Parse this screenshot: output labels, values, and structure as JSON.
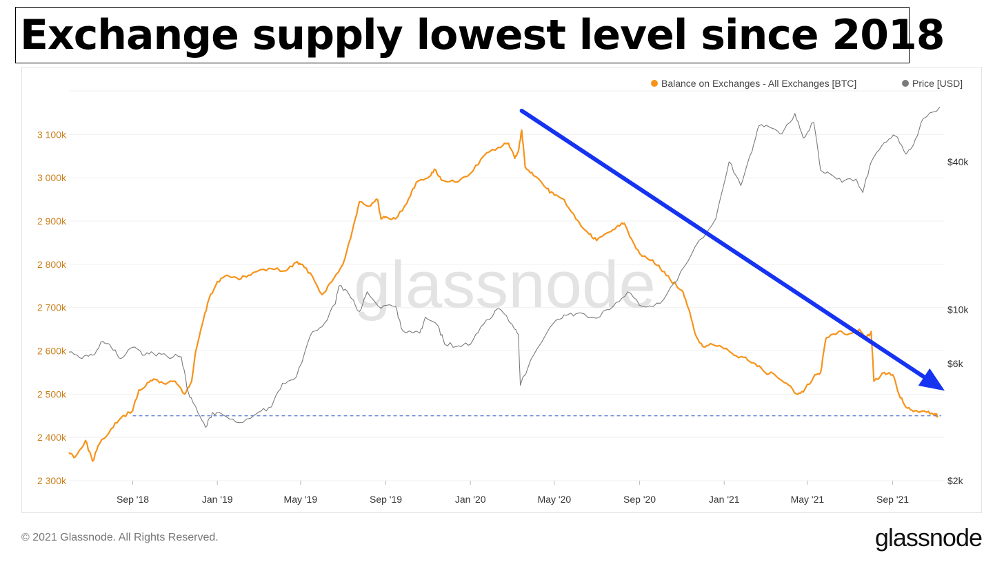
{
  "header": {
    "title": "Exchange supply lowest level since 2018"
  },
  "watermark": "glassnode",
  "footer": {
    "copyright": "© 2021 Glassnode. All Rights Reserved.",
    "logo_text": "glassnode"
  },
  "colors": {
    "balance": "#f7931a",
    "price": "#7a7a7a",
    "arrow": "#1533f0",
    "dashed": "#5b7bd5",
    "left_ticks": "#c97f1c",
    "grid": "#efefef"
  },
  "chart_data": {
    "type": "line",
    "title": "",
    "x_tick_labels": [
      "Sep '18",
      "Jan '19",
      "May '19",
      "Sep '19",
      "Jan '20",
      "May '20",
      "Sep '20",
      "Jan '21",
      "May '21",
      "Sep '21"
    ],
    "x_ticks": [
      "2018-09-01",
      "2019-01-01",
      "2019-05-01",
      "2019-09-01",
      "2020-01-01",
      "2020-05-01",
      "2020-09-01",
      "2021-01-01",
      "2021-05-01",
      "2021-09-01"
    ],
    "xlim": [
      "2018-06-01",
      "2021-11-15"
    ],
    "legend": {
      "position": "top-right",
      "items": [
        "Balance on Exchanges - All Exchanges [BTC]",
        "Price [USD]"
      ]
    },
    "left_axis": {
      "ticks": [
        2300000,
        2400000,
        2500000,
        2600000,
        2700000,
        2800000,
        2900000,
        3000000,
        3100000
      ],
      "labels": [
        "2 300k",
        "2 400k",
        "2 500k",
        "2 600k",
        "2 700k",
        "2 800k",
        "2 900k",
        "3 000k",
        "3 100k"
      ],
      "ylim": [
        2300000,
        3220000
      ]
    },
    "right_axis": {
      "scale": "log",
      "ticks": [
        2000,
        6000,
        10000,
        40000
      ],
      "labels": [
        "$2k",
        "$6k",
        "$10k",
        "$40k"
      ]
    },
    "series": [
      {
        "name": "Balance on Exchanges - All Exchanges [BTC]",
        "axis": "left",
        "points": [
          [
            "2018-06-01",
            2365000
          ],
          [
            "2018-06-10",
            2355000
          ],
          [
            "2018-06-25",
            2393000
          ],
          [
            "2018-07-05",
            2345000
          ],
          [
            "2018-07-15",
            2385000
          ],
          [
            "2018-08-01",
            2420000
          ],
          [
            "2018-08-15",
            2445000
          ],
          [
            "2018-09-01",
            2462000
          ],
          [
            "2018-09-10",
            2510000
          ],
          [
            "2018-09-20",
            2520000
          ],
          [
            "2018-10-01",
            2535000
          ],
          [
            "2018-10-15",
            2525000
          ],
          [
            "2018-11-01",
            2530000
          ],
          [
            "2018-11-15",
            2500000
          ],
          [
            "2018-11-25",
            2530000
          ],
          [
            "2018-12-01",
            2600000
          ],
          [
            "2018-12-10",
            2660000
          ],
          [
            "2018-12-20",
            2720000
          ],
          [
            "2019-01-01",
            2760000
          ],
          [
            "2019-01-15",
            2775000
          ],
          [
            "2019-02-01",
            2765000
          ],
          [
            "2019-02-15",
            2775000
          ],
          [
            "2019-03-01",
            2785000
          ],
          [
            "2019-03-20",
            2790000
          ],
          [
            "2019-04-10",
            2785000
          ],
          [
            "2019-04-25",
            2805000
          ],
          [
            "2019-05-01",
            2800000
          ],
          [
            "2019-05-15",
            2780000
          ],
          [
            "2019-06-01",
            2730000
          ],
          [
            "2019-06-15",
            2760000
          ],
          [
            "2019-07-01",
            2800000
          ],
          [
            "2019-07-15",
            2880000
          ],
          [
            "2019-07-25",
            2945000
          ],
          [
            "2019-08-10",
            2935000
          ],
          [
            "2019-08-20",
            2950000
          ],
          [
            "2019-08-25",
            2905000
          ],
          [
            "2019-09-01",
            2910000
          ],
          [
            "2019-09-15",
            2905000
          ],
          [
            "2019-10-01",
            2940000
          ],
          [
            "2019-10-15",
            2990000
          ],
          [
            "2019-11-01",
            3000000
          ],
          [
            "2019-11-10",
            3020000
          ],
          [
            "2019-11-20",
            2995000
          ],
          [
            "2019-12-10",
            2990000
          ],
          [
            "2020-01-01",
            3010000
          ],
          [
            "2020-01-20",
            3050000
          ],
          [
            "2020-02-10",
            3070000
          ],
          [
            "2020-02-25",
            3080000
          ],
          [
            "2020-03-05",
            3045000
          ],
          [
            "2020-03-10",
            3060000
          ],
          [
            "2020-03-15",
            3110000
          ],
          [
            "2020-03-20",
            3025000
          ],
          [
            "2020-04-01",
            3005000
          ],
          [
            "2020-04-20",
            2975000
          ],
          [
            "2020-05-01",
            2960000
          ],
          [
            "2020-05-15",
            2950000
          ],
          [
            "2020-06-01",
            2905000
          ],
          [
            "2020-06-20",
            2870000
          ],
          [
            "2020-07-01",
            2855000
          ],
          [
            "2020-07-20",
            2875000
          ],
          [
            "2020-08-01",
            2890000
          ],
          [
            "2020-08-10",
            2895000
          ],
          [
            "2020-08-20",
            2860000
          ],
          [
            "2020-09-01",
            2825000
          ],
          [
            "2020-09-20",
            2810000
          ],
          [
            "2020-10-01",
            2790000
          ],
          [
            "2020-10-15",
            2765000
          ],
          [
            "2020-11-01",
            2740000
          ],
          [
            "2020-11-10",
            2700000
          ],
          [
            "2020-11-20",
            2640000
          ],
          [
            "2020-12-01",
            2610000
          ],
          [
            "2020-12-15",
            2615000
          ],
          [
            "2021-01-01",
            2605000
          ],
          [
            "2021-01-15",
            2590000
          ],
          [
            "2021-02-01",
            2585000
          ],
          [
            "2021-02-15",
            2570000
          ],
          [
            "2021-03-01",
            2550000
          ],
          [
            "2021-03-15",
            2545000
          ],
          [
            "2021-04-01",
            2525000
          ],
          [
            "2021-04-15",
            2500000
          ],
          [
            "2021-04-25",
            2505000
          ],
          [
            "2021-05-10",
            2540000
          ],
          [
            "2021-05-20",
            2550000
          ],
          [
            "2021-05-28",
            2630000
          ],
          [
            "2021-06-15",
            2645000
          ],
          [
            "2021-07-01",
            2640000
          ],
          [
            "2021-07-15",
            2650000
          ],
          [
            "2021-07-25",
            2630000
          ],
          [
            "2021-08-01",
            2645000
          ],
          [
            "2021-08-05",
            2530000
          ],
          [
            "2021-08-20",
            2550000
          ],
          [
            "2021-09-01",
            2545000
          ],
          [
            "2021-09-10",
            2500000
          ],
          [
            "2021-09-20",
            2470000
          ],
          [
            "2021-10-01",
            2460000
          ],
          [
            "2021-10-20",
            2458000
          ],
          [
            "2021-11-01",
            2455000
          ],
          [
            "2021-11-05",
            2450000
          ]
        ]
      },
      {
        "name": "Price [USD]",
        "axis": "right",
        "points": [
          [
            "2018-06-01",
            6700
          ],
          [
            "2018-06-20",
            6300
          ],
          [
            "2018-07-05",
            6500
          ],
          [
            "2018-07-20",
            7400
          ],
          [
            "2018-08-01",
            7000
          ],
          [
            "2018-08-15",
            6300
          ],
          [
            "2018-09-01",
            7000
          ],
          [
            "2018-09-15",
            6500
          ],
          [
            "2018-10-01",
            6600
          ],
          [
            "2018-10-20",
            6450
          ],
          [
            "2018-11-10",
            6400
          ],
          [
            "2018-11-20",
            4600
          ],
          [
            "2018-12-01",
            4000
          ],
          [
            "2018-12-15",
            3300
          ],
          [
            "2018-12-25",
            3800
          ],
          [
            "2019-01-10",
            3700
          ],
          [
            "2019-02-01",
            3450
          ],
          [
            "2019-03-01",
            3800
          ],
          [
            "2019-03-20",
            4000
          ],
          [
            "2019-04-05",
            5000
          ],
          [
            "2019-04-25",
            5300
          ],
          [
            "2019-05-15",
            7800
          ],
          [
            "2019-06-01",
            8500
          ],
          [
            "2019-06-20",
            10500
          ],
          [
            "2019-06-26",
            12500
          ],
          [
            "2019-07-10",
            11500
          ],
          [
            "2019-07-25",
            9800
          ],
          [
            "2019-08-05",
            11800
          ],
          [
            "2019-08-25",
            10100
          ],
          [
            "2019-09-15",
            10300
          ],
          [
            "2019-09-25",
            8200
          ],
          [
            "2019-10-20",
            8000
          ],
          [
            "2019-10-28",
            9300
          ],
          [
            "2019-11-15",
            8600
          ],
          [
            "2019-11-25",
            7200
          ],
          [
            "2019-12-15",
            7100
          ],
          [
            "2020-01-01",
            7200
          ],
          [
            "2020-01-20",
            8700
          ],
          [
            "2020-02-10",
            10100
          ],
          [
            "2020-03-01",
            8700
          ],
          [
            "2020-03-10",
            7900
          ],
          [
            "2020-03-13",
            4900
          ],
          [
            "2020-04-01",
            6500
          ],
          [
            "2020-04-30",
            8800
          ],
          [
            "2020-05-15",
            9500
          ],
          [
            "2020-06-01",
            9600
          ],
          [
            "2020-07-01",
            9200
          ],
          [
            "2020-07-25",
            10300
          ],
          [
            "2020-08-15",
            11800
          ],
          [
            "2020-09-05",
            10300
          ],
          [
            "2020-10-01",
            10600
          ],
          [
            "2020-10-25",
            13100
          ],
          [
            "2020-11-20",
            18000
          ],
          [
            "2020-12-20",
            23500
          ],
          [
            "2021-01-08",
            40000
          ],
          [
            "2021-01-25",
            32000
          ],
          [
            "2021-02-10",
            44000
          ],
          [
            "2021-02-20",
            56000
          ],
          [
            "2021-03-10",
            55000
          ],
          [
            "2021-03-25",
            52000
          ],
          [
            "2021-04-13",
            63000
          ],
          [
            "2021-04-25",
            50000
          ],
          [
            "2021-05-10",
            58000
          ],
          [
            "2021-05-20",
            37000
          ],
          [
            "2021-06-01",
            36000
          ],
          [
            "2021-06-20",
            33000
          ],
          [
            "2021-07-10",
            34000
          ],
          [
            "2021-07-20",
            30000
          ],
          [
            "2021-08-01",
            40000
          ],
          [
            "2021-08-20",
            48000
          ],
          [
            "2021-09-05",
            51000
          ],
          [
            "2021-09-20",
            43000
          ],
          [
            "2021-10-01",
            47000
          ],
          [
            "2021-10-15",
            60000
          ],
          [
            "2021-11-08",
            67000
          ]
        ]
      }
    ],
    "annotations": [
      {
        "type": "hline",
        "axis": "left",
        "y": 2450000,
        "from": "2018-09-01",
        "to": "2021-11-10",
        "style": "dashed"
      },
      {
        "type": "arrow",
        "from": [
          "2020-03-15",
          3155000
        ],
        "to": [
          "2021-11-15",
          2508000
        ]
      }
    ]
  }
}
